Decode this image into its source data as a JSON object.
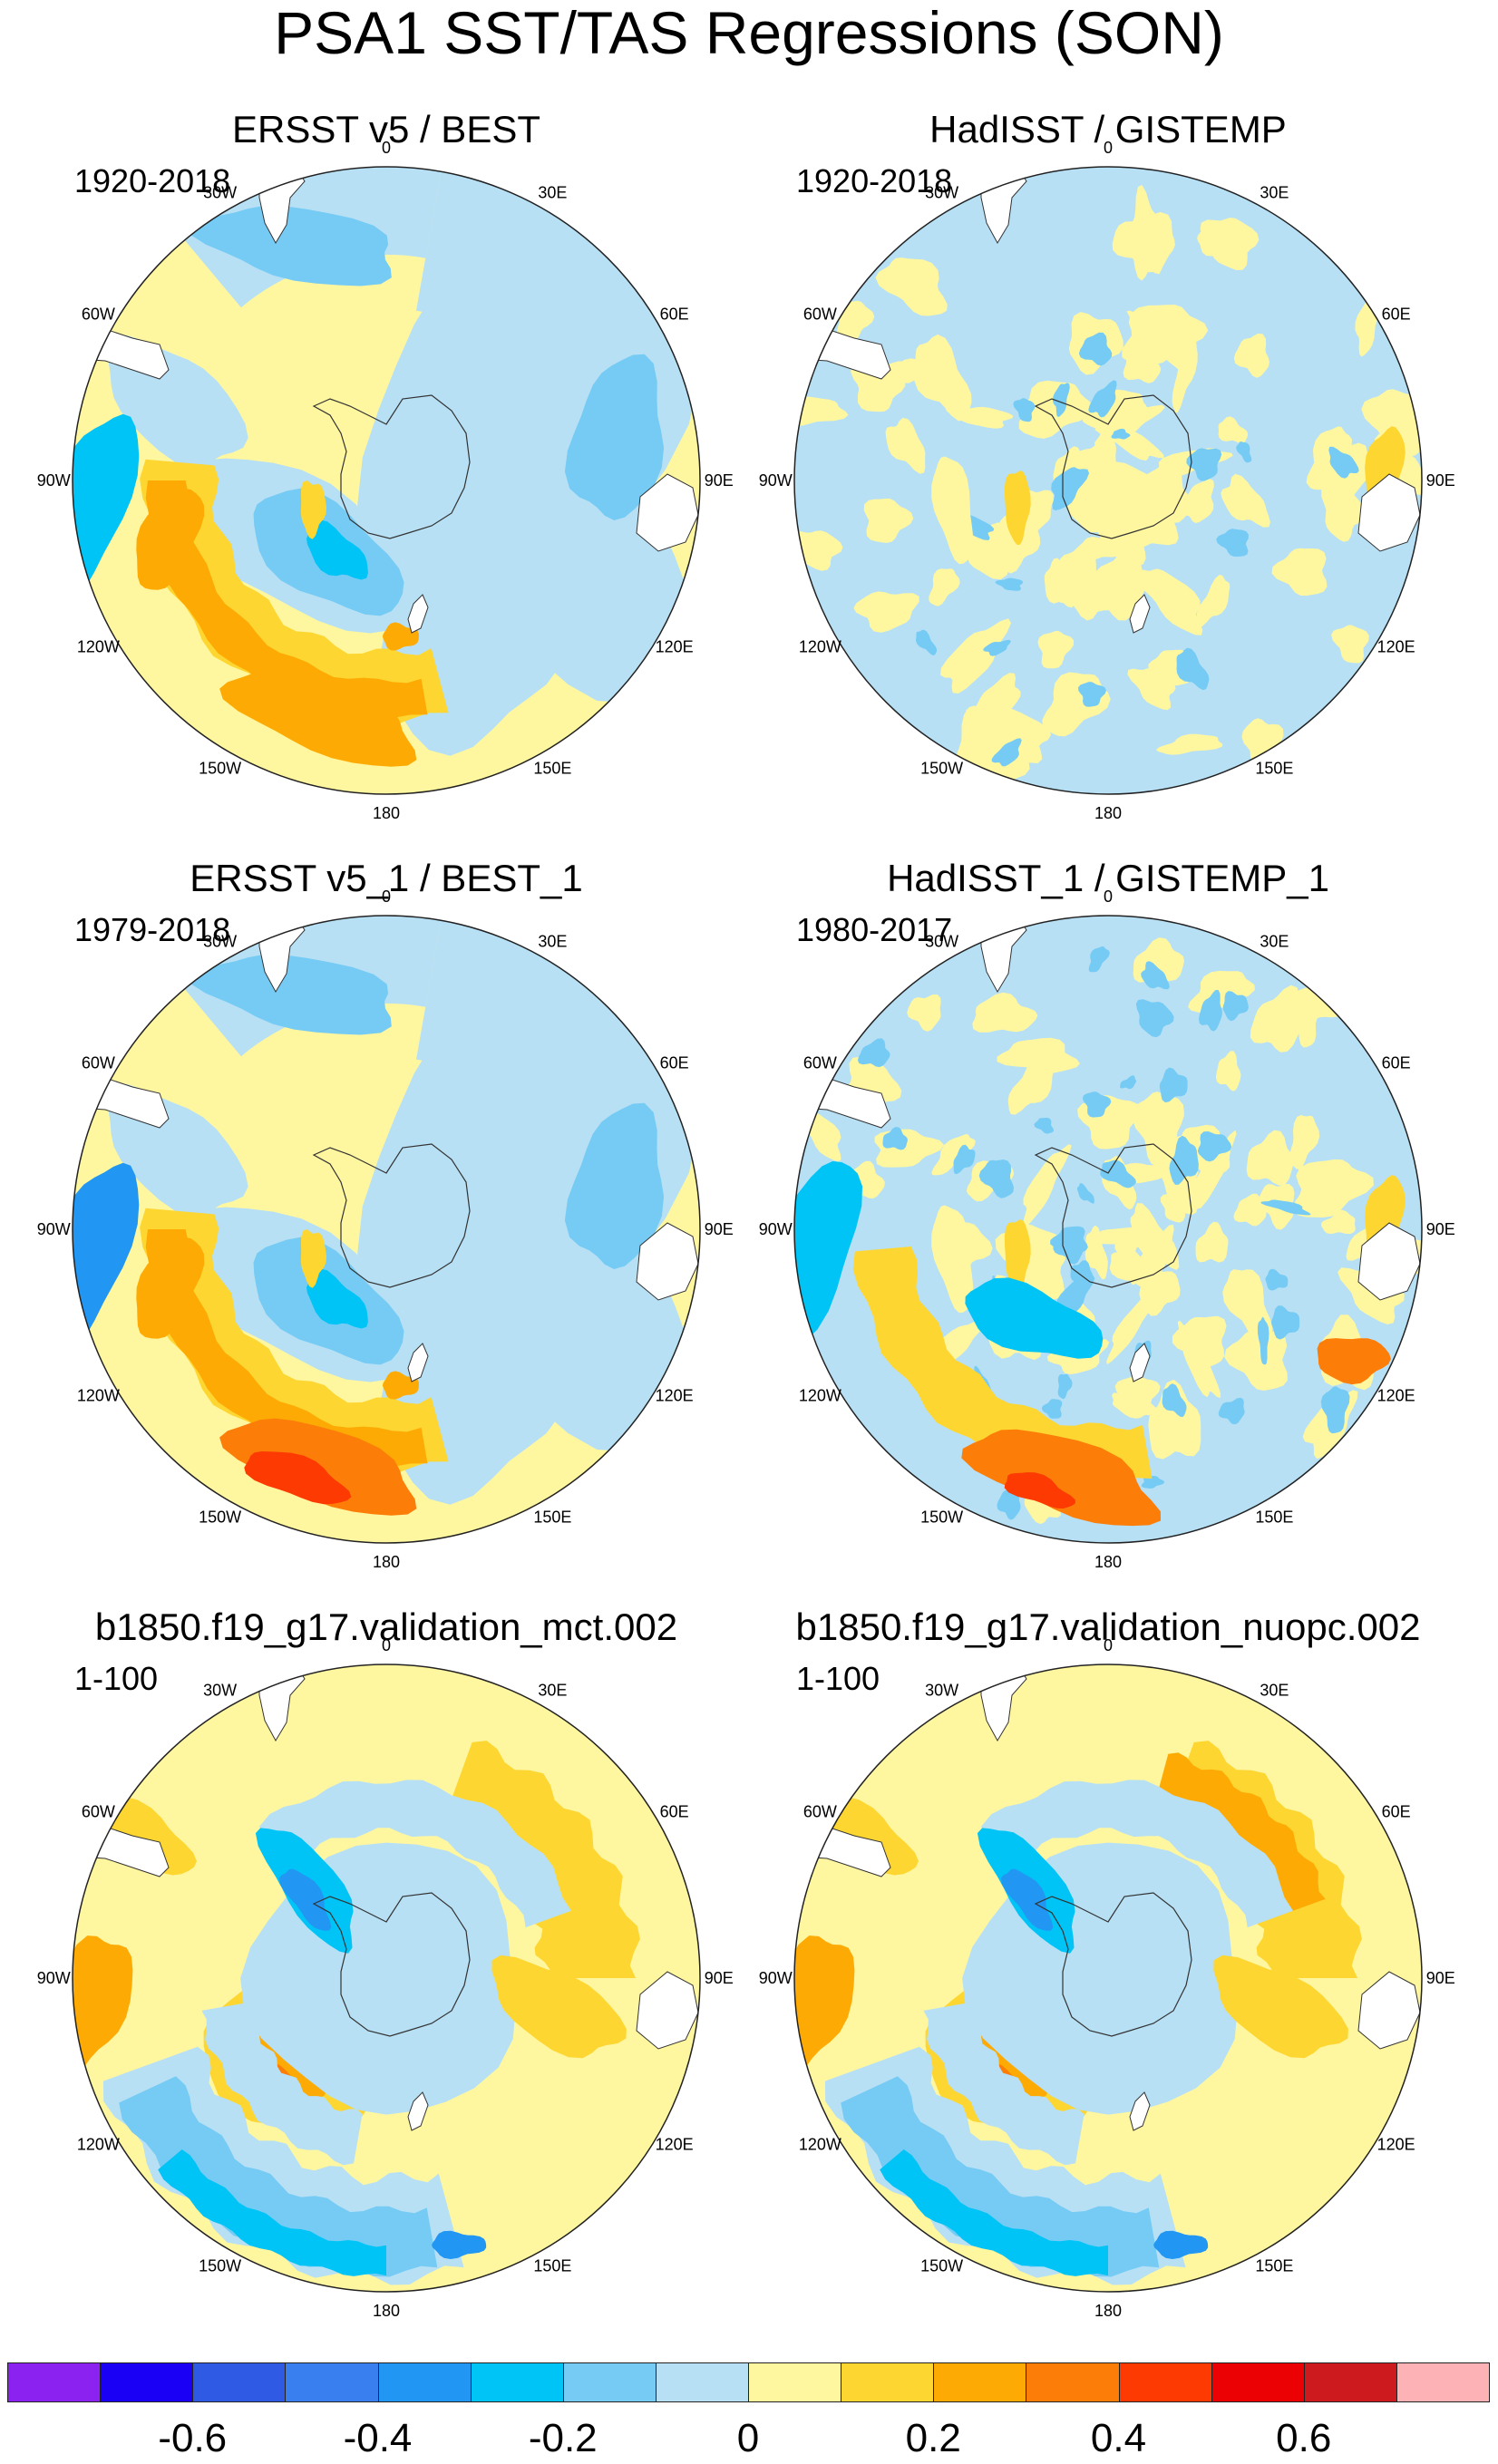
{
  "title": "PSA1 SST/TAS Regressions (SON)",
  "panels": [
    {
      "title": "ERSST v5 / BEST",
      "period": "1920-2018",
      "pattern": "obs"
    },
    {
      "title": "HadISST / GISTEMP",
      "period": "1920-2018",
      "pattern": "noisy"
    },
    {
      "title": "ERSST v5_1 / BEST_1",
      "period": "1979-2018",
      "pattern": "obs-strong"
    },
    {
      "title": "HadISST_1 / GISTEMP_1",
      "period": "1980-2017",
      "pattern": "noisy-strong"
    },
    {
      "title": "b1850.f19_g17.validation_mct.002",
      "period": "1-100",
      "pattern": "model"
    },
    {
      "title": "b1850.f19_g17.validation_nuopc.002",
      "period": "1-100",
      "pattern": "model2"
    }
  ],
  "longitude_labels": [
    "0",
    "30E",
    "60E",
    "90E",
    "120E",
    "150E",
    "180",
    "150W",
    "120W",
    "90W",
    "60W",
    "30W"
  ],
  "colorbar": {
    "colors": [
      "#8c22ef",
      "#1b00f6",
      "#2f5be4",
      "#3a7ff0",
      "#2196f3",
      "#00c4f6",
      "#76cbf4",
      "#b7e0f5",
      "#fff6a0",
      "#fdd631",
      "#fdab04",
      "#fc7d08",
      "#fd3a01",
      "#eb0004",
      "#cc1a1e",
      "#fdb3b5"
    ],
    "labels": [
      "-0.6",
      "-0.4",
      "-0.2",
      "0",
      "0.2",
      "0.4",
      "0.6"
    ]
  }
}
